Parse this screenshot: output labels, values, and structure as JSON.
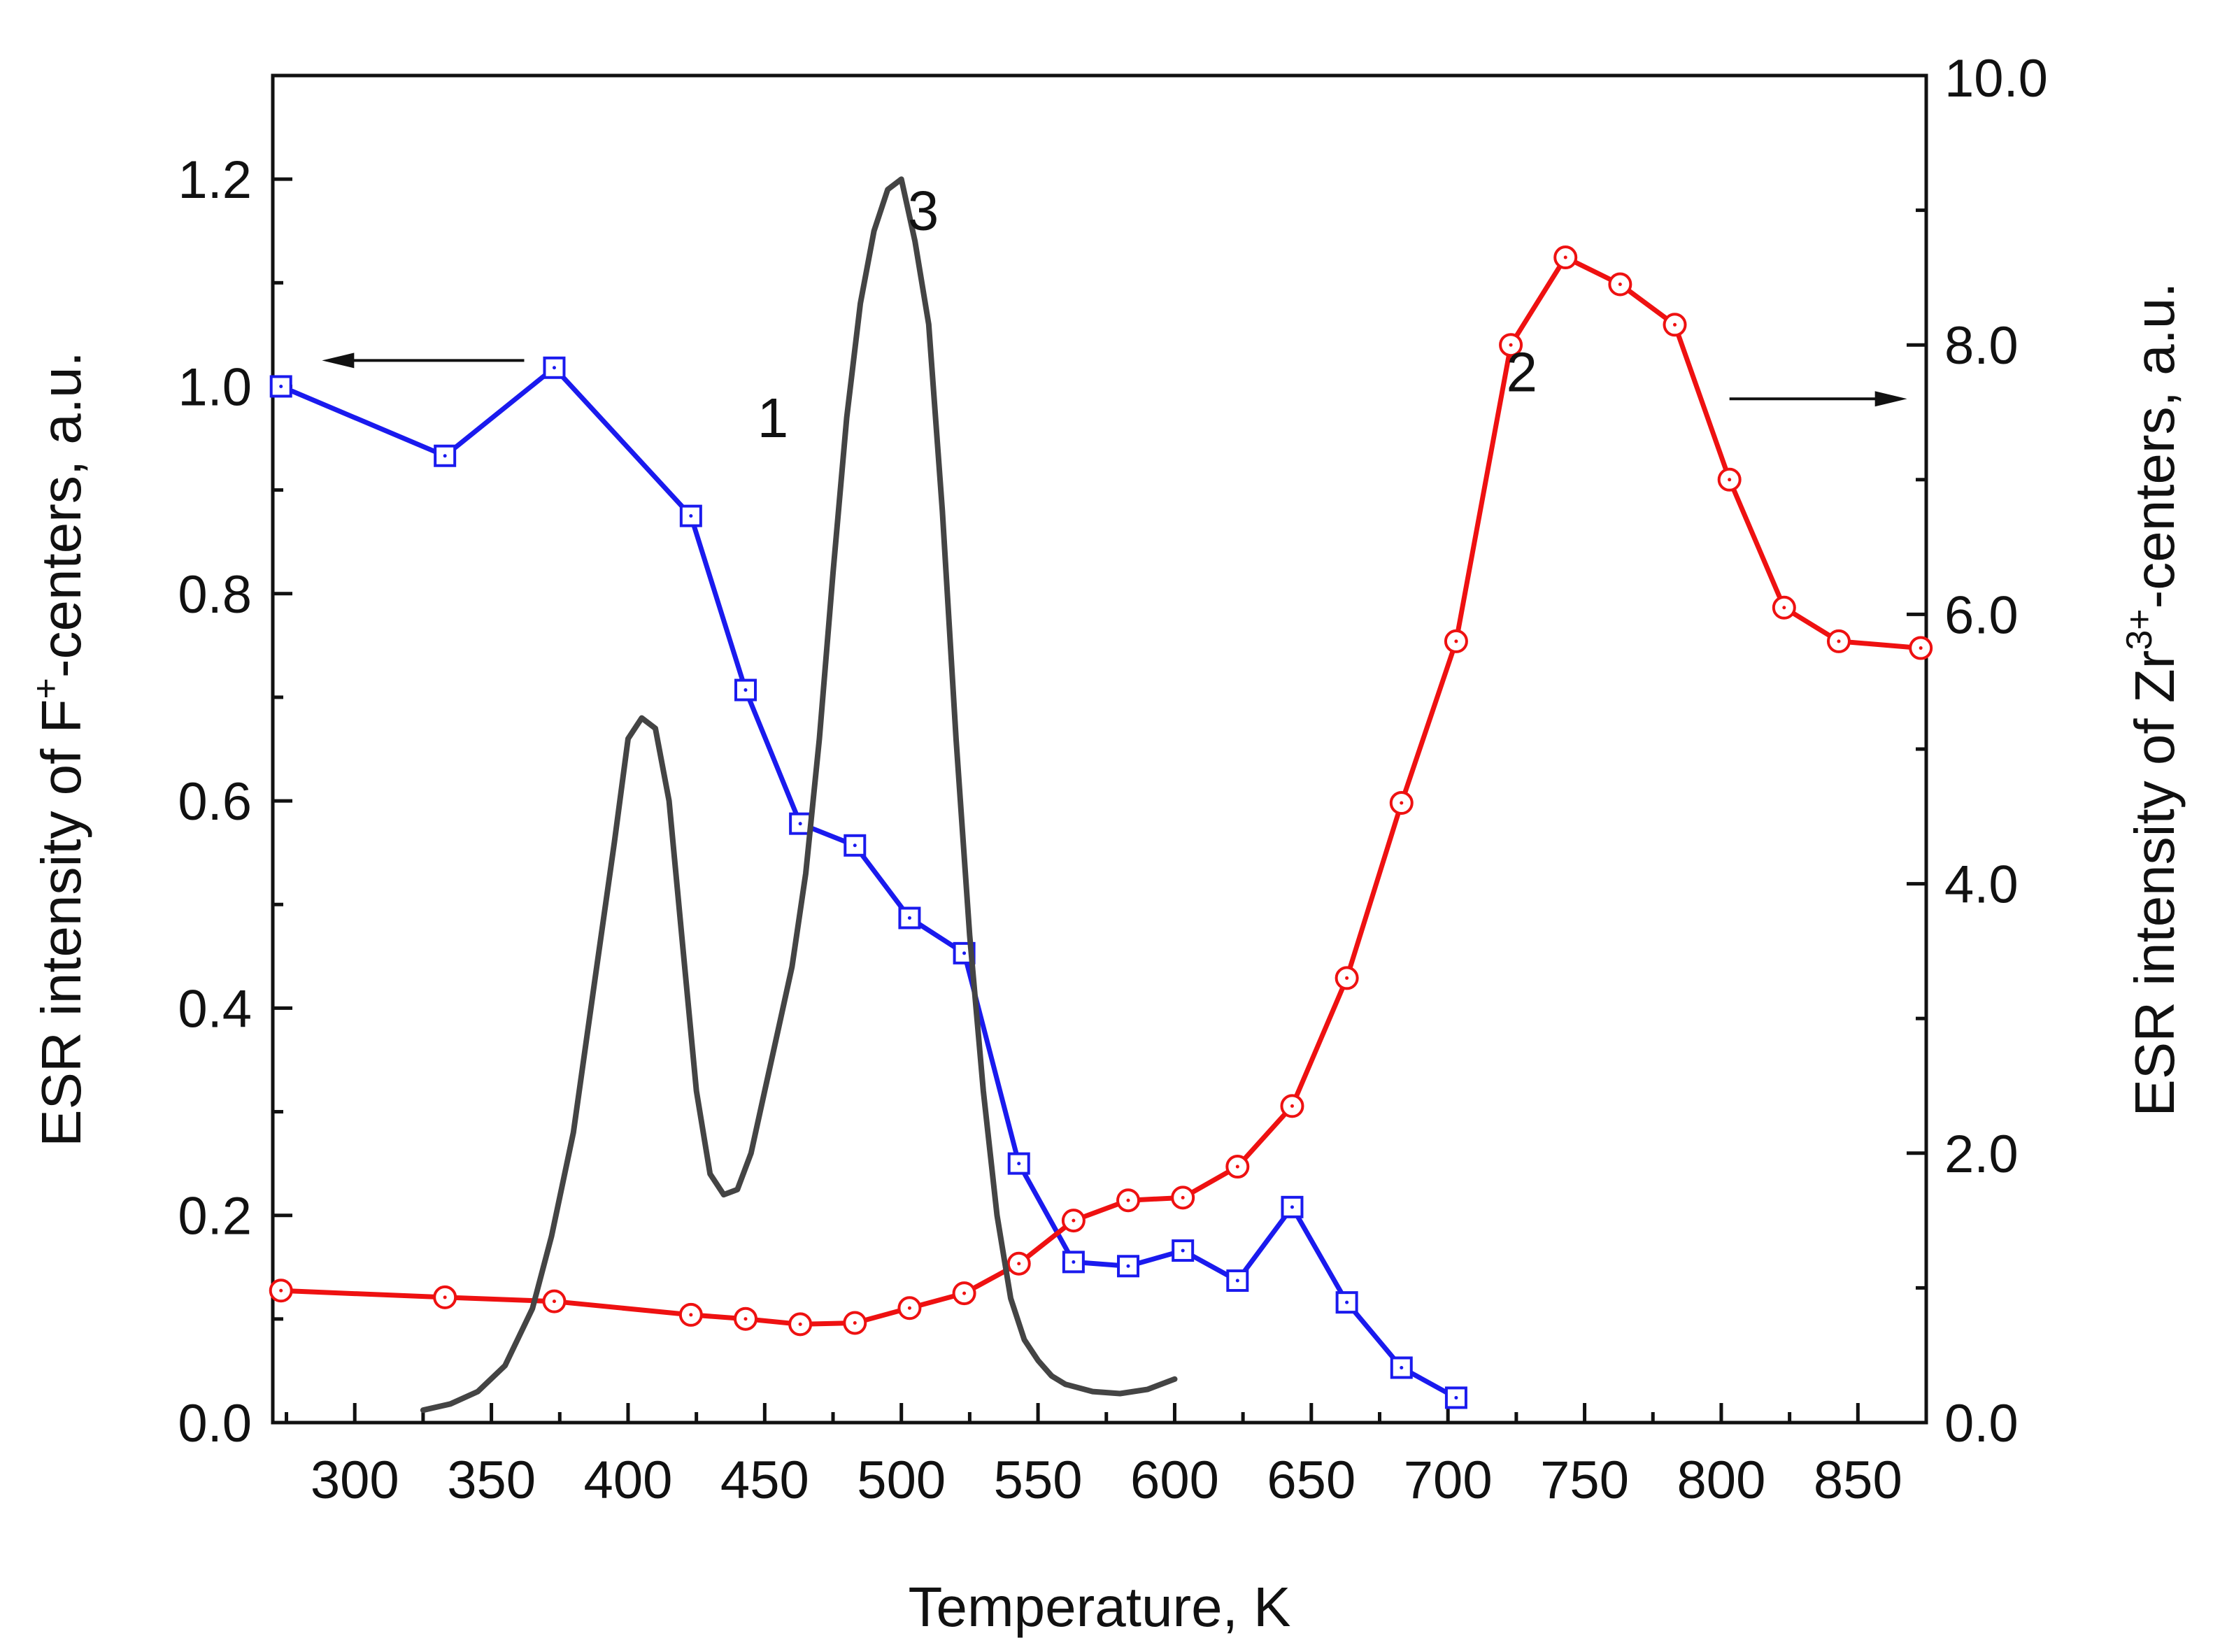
{
  "chart_data": {
    "type": "line",
    "xlabel": "Temperature, K",
    "ylabel_left": {
      "prefix": "ESR intensity of F",
      "sup": "+",
      "suffix": "-centers, a.u."
    },
    "ylabel_right": {
      "prefix": "ESR intensity of Zr",
      "sup": "3+",
      "suffix": "-centers, a.u."
    },
    "xlim": [
      270,
      875
    ],
    "ylim_left": [
      0,
      1.3
    ],
    "ylim_right": [
      0,
      10.0
    ],
    "x_ticks": [
      300,
      350,
      400,
      450,
      500,
      550,
      600,
      650,
      700,
      750,
      800,
      850
    ],
    "x_tick_labels": [
      "300",
      "350",
      "400",
      "450",
      "500",
      "550",
      "600",
      "650",
      "700",
      "750",
      "800",
      "850"
    ],
    "y_left_ticks": [
      0,
      0.2,
      0.4,
      0.6,
      0.8,
      1.0,
      1.2
    ],
    "y_left_tick_labels": [
      "0.0",
      "0.2",
      "0.4",
      "0.6",
      "0.8",
      "1.0",
      "1.2"
    ],
    "y_right_ticks": [
      0,
      2,
      4,
      6,
      8,
      10
    ],
    "y_right_tick_labels": [
      "0.0",
      "2.0",
      "4.0",
      "6.0",
      "8.0",
      "10.0"
    ],
    "grid": false,
    "series": [
      {
        "label": "1",
        "axis": "left",
        "color": "#1a1aee",
        "marker": "square",
        "label_at": [
          453,
          0.97
        ],
        "x": [
          273,
          333,
          373,
          423,
          443,
          463,
          483,
          503,
          523,
          543,
          563,
          583,
          603,
          623,
          643,
          663,
          683,
          703
        ],
        "y": [
          1.0,
          0.933,
          1.018,
          0.875,
          0.707,
          0.578,
          0.557,
          0.487,
          0.453,
          0.25,
          0.155,
          0.151,
          0.166,
          0.137,
          0.208,
          0.116,
          0.053,
          0.024
        ]
      },
      {
        "label": "2",
        "axis": "right",
        "color": "#ee1111",
        "marker": "circle",
        "label_at": [
          727,
          7.8
        ],
        "x": [
          273,
          333,
          373,
          423,
          443,
          463,
          483,
          503,
          523,
          543,
          563,
          583,
          603,
          623,
          643,
          663,
          683,
          703,
          723,
          743,
          763,
          783,
          803,
          823,
          843,
          873
        ],
        "y": [
          0.98,
          0.93,
          0.9,
          0.8,
          0.77,
          0.73,
          0.74,
          0.85,
          0.96,
          1.18,
          1.5,
          1.65,
          1.67,
          1.9,
          2.35,
          3.3,
          4.6,
          5.8,
          8.0,
          8.65,
          8.45,
          8.15,
          7.0,
          6.05,
          5.8,
          5.75
        ]
      },
      {
        "label": "3",
        "axis": "left",
        "color": "#444444",
        "marker": "none",
        "label_at": [
          508,
          1.17
        ],
        "x": [
          325,
          335,
          345,
          355,
          365,
          372,
          380,
          388,
          395,
          400,
          405,
          410,
          415,
          420,
          425,
          430,
          435,
          440,
          445,
          450,
          455,
          460,
          465,
          470,
          475,
          480,
          485,
          490,
          495,
          500,
          505,
          510,
          515,
          520,
          525,
          530,
          535,
          540,
          545,
          550,
          555,
          560,
          570,
          580,
          590,
          600
        ],
        "y": [
          0.012,
          0.018,
          0.03,
          0.055,
          0.11,
          0.18,
          0.28,
          0.43,
          0.56,
          0.66,
          0.68,
          0.67,
          0.6,
          0.46,
          0.32,
          0.24,
          0.22,
          0.225,
          0.26,
          0.32,
          0.38,
          0.44,
          0.53,
          0.66,
          0.82,
          0.97,
          1.08,
          1.15,
          1.19,
          1.2,
          1.14,
          1.06,
          0.88,
          0.66,
          0.47,
          0.32,
          0.2,
          0.12,
          0.08,
          0.06,
          0.045,
          0.037,
          0.03,
          0.028,
          0.032,
          0.042
        ]
      }
    ],
    "arrows": [
      {
        "points_to": "left",
        "y_axis": "left",
        "y": 1.025,
        "x_from": 362,
        "x_to": 288
      },
      {
        "points_to": "right",
        "y_axis": "right",
        "y": 7.6,
        "x_from": 803,
        "x_to": 868
      }
    ]
  }
}
